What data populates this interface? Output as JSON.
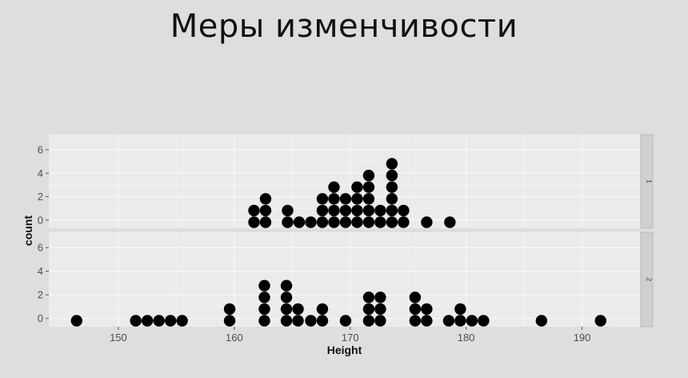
{
  "slide": {
    "title": "Меры изменчивости"
  },
  "chart_data": {
    "type": "scatter",
    "subtype": "dotplot",
    "title": "",
    "xlabel": "Height",
    "ylabel": "count",
    "xlim": [
      144,
      195
    ],
    "ylim": [
      -0.7,
      7.3
    ],
    "x_ticks": [
      150,
      160,
      170,
      180,
      190
    ],
    "y_ticks": [
      0,
      2,
      4,
      6
    ],
    "grid": true,
    "facets": [
      {
        "strip_label": "1",
        "stacks": [
          {
            "x": 161.7,
            "count": 2
          },
          {
            "x": 162.7,
            "count": 3
          },
          {
            "x": 164.6,
            "count": 2
          },
          {
            "x": 165.6,
            "count": 1
          },
          {
            "x": 166.6,
            "count": 1
          },
          {
            "x": 167.6,
            "count": 3
          },
          {
            "x": 168.6,
            "count": 4
          },
          {
            "x": 169.6,
            "count": 3
          },
          {
            "x": 170.6,
            "count": 4
          },
          {
            "x": 171.6,
            "count": 5
          },
          {
            "x": 172.6,
            "count": 2
          },
          {
            "x": 173.6,
            "count": 6
          },
          {
            "x": 174.6,
            "count": 2
          },
          {
            "x": 176.6,
            "count": 1
          },
          {
            "x": 178.6,
            "count": 1
          }
        ]
      },
      {
        "strip_label": "2",
        "stacks": [
          {
            "x": 146.4,
            "count": 1
          },
          {
            "x": 151.5,
            "count": 1
          },
          {
            "x": 152.5,
            "count": 1
          },
          {
            "x": 153.5,
            "count": 1
          },
          {
            "x": 154.5,
            "count": 1
          },
          {
            "x": 155.5,
            "count": 1
          },
          {
            "x": 159.6,
            "count": 2
          },
          {
            "x": 162.6,
            "count": 4
          },
          {
            "x": 164.5,
            "count": 4
          },
          {
            "x": 165.5,
            "count": 2
          },
          {
            "x": 166.6,
            "count": 1
          },
          {
            "x": 167.6,
            "count": 2
          },
          {
            "x": 169.6,
            "count": 1
          },
          {
            "x": 171.6,
            "count": 3
          },
          {
            "x": 172.6,
            "count": 3
          },
          {
            "x": 175.6,
            "count": 3
          },
          {
            "x": 176.6,
            "count": 2
          },
          {
            "x": 178.5,
            "count": 1
          },
          {
            "x": 179.5,
            "count": 2
          },
          {
            "x": 180.5,
            "count": 1
          },
          {
            "x": 181.5,
            "count": 1
          },
          {
            "x": 186.5,
            "count": 1
          },
          {
            "x": 191.6,
            "count": 1
          }
        ]
      }
    ],
    "colors": {
      "panel_bg": "#ebebeb",
      "grid": "#f7f7f7",
      "dot": "#000000",
      "strip_bg": "#cfcfcf"
    }
  }
}
